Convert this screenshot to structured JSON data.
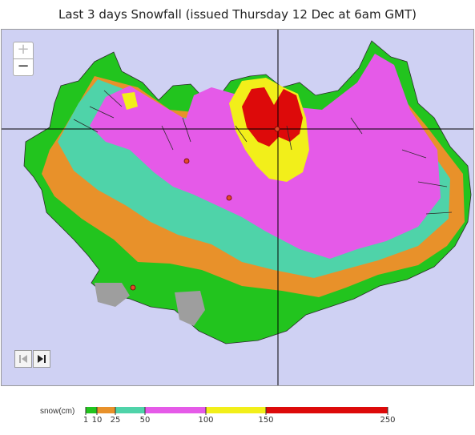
{
  "title": "Last 3 days Snowfall (issued Thursday 12 Dec at 6am GMT)",
  "controls": {
    "zoom_in": "+",
    "zoom_out": "−",
    "first_icon": "skip-to-first-icon",
    "next_icon": "step-forward-icon"
  },
  "legend": {
    "label": "snow(cm)",
    "ticks": [
      "1",
      "10",
      "25",
      "50",
      "100",
      "150",
      "250"
    ],
    "bands": [
      {
        "from": 1,
        "to": 10,
        "color": "#22c41e"
      },
      {
        "from": 10,
        "to": 25,
        "color": "#e8912a"
      },
      {
        "from": 25,
        "to": 50,
        "color": "#4fd3a9"
      },
      {
        "from": 50,
        "to": 100,
        "color": "#e55ae8"
      },
      {
        "from": 100,
        "to": 150,
        "color": "#f2ef1a"
      },
      {
        "from": 150,
        "to": 250,
        "color": "#dd0a0a"
      }
    ]
  },
  "map": {
    "background_color": "#cfd1f3",
    "rock_color": "#9e9e9e",
    "station_color": "#e04a2a",
    "crosshair_color": "#000000"
  }
}
